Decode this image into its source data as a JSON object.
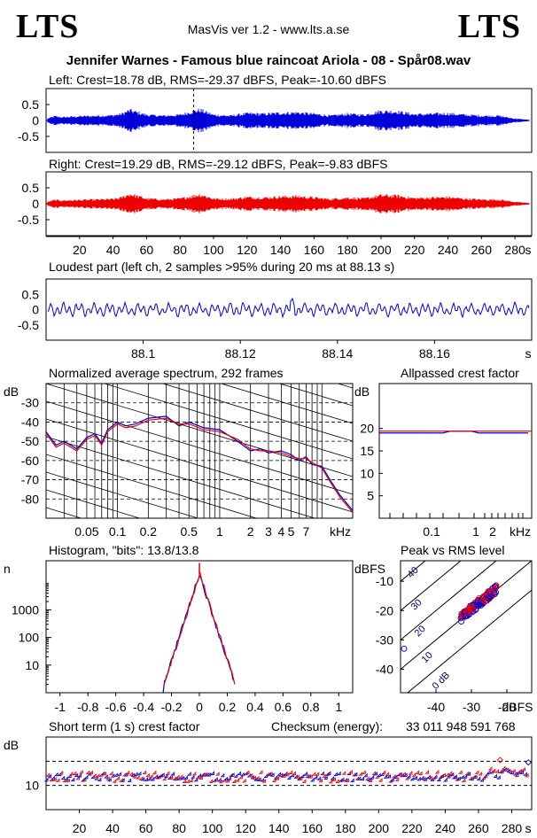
{
  "header": {
    "logo_left": "LTS",
    "logo_right": "LTS",
    "app": "MasVis ver 1.2 - www.lts.a.se",
    "file_title": "Jennifer Warnes - Famous blue raincoat Ariola - 08 - Spår08.wav"
  },
  "colors": {
    "left": "#0000dd",
    "right": "#ee0000",
    "grid": "#000000"
  },
  "chart_data": [
    {
      "id": "left_waveform",
      "type": "line",
      "title": "Left: Crest=18.78 dB, RMS=-29.37 dBFS, Peak=-10.60 dBFS",
      "xlim": [
        0,
        290
      ],
      "ylim": [
        -1,
        1
      ],
      "yticks": [
        "0.5",
        "0",
        "-0.5"
      ],
      "marker_x": 88.13,
      "envelope_x": [
        0,
        5,
        10,
        20,
        30,
        40,
        45,
        50,
        55,
        60,
        70,
        80,
        88,
        92,
        100,
        110,
        120,
        130,
        140,
        150,
        160,
        170,
        180,
        190,
        200,
        210,
        220,
        230,
        240,
        250,
        260,
        270,
        280,
        290
      ],
      "envelope": [
        0.03,
        0.09,
        0.07,
        0.09,
        0.1,
        0.11,
        0.14,
        0.22,
        0.17,
        0.12,
        0.1,
        0.12,
        0.2,
        0.23,
        0.12,
        0.1,
        0.15,
        0.14,
        0.16,
        0.17,
        0.14,
        0.1,
        0.14,
        0.12,
        0.2,
        0.19,
        0.13,
        0.14,
        0.15,
        0.12,
        0.1,
        0.1,
        0.04,
        0.01
      ]
    },
    {
      "id": "right_waveform",
      "type": "line",
      "title": "Right: Crest=19.29 dB, RMS=-29.12 dBFS, Peak=-9.83 dBFS",
      "xlim": [
        0,
        290
      ],
      "ylim": [
        -1,
        1
      ],
      "yticks": [
        "0.5",
        "0",
        "-0.5"
      ],
      "xticks": [
        "20",
        "40",
        "60",
        "80",
        "100",
        "120",
        "140",
        "160",
        "180",
        "200",
        "220",
        "240",
        "260",
        "280"
      ],
      "xunit": "s",
      "envelope_x": [
        0,
        5,
        10,
        20,
        30,
        40,
        45,
        50,
        55,
        60,
        70,
        80,
        88,
        92,
        100,
        110,
        120,
        130,
        140,
        150,
        160,
        170,
        180,
        190,
        200,
        210,
        220,
        230,
        240,
        250,
        260,
        270,
        280,
        290
      ],
      "envelope": [
        0.03,
        0.08,
        0.07,
        0.08,
        0.09,
        0.1,
        0.13,
        0.21,
        0.16,
        0.11,
        0.09,
        0.11,
        0.17,
        0.2,
        0.11,
        0.1,
        0.14,
        0.13,
        0.15,
        0.16,
        0.13,
        0.1,
        0.13,
        0.11,
        0.18,
        0.17,
        0.12,
        0.13,
        0.14,
        0.11,
        0.09,
        0.09,
        0.04,
        0.01
      ]
    },
    {
      "id": "loudest_part",
      "type": "line",
      "title": "Loudest part (left  ch, 2 samples >95% during 20 ms at 88.13 s)",
      "xlim": [
        88.08,
        88.18
      ],
      "ylim": [
        -1,
        1
      ],
      "yticks": [
        "0.5",
        "0",
        "-0.5"
      ],
      "xticks": [
        "88.1",
        "88.12",
        "88.14",
        "88.16"
      ],
      "xunit": "s"
    },
    {
      "id": "spectrum",
      "type": "line",
      "title": "Normalized average spectrum, 292 frames",
      "ylabel": "dB",
      "xunit": "kHz",
      "xlim": [
        0.02,
        20
      ],
      "ylim": [
        -90,
        -20
      ],
      "yticks": [
        "-30",
        "-40",
        "-50",
        "-60",
        "-70",
        "-80"
      ],
      "xticks": [
        "0.05",
        "0.1",
        "0.2",
        "0.5",
        "1",
        "2",
        "3",
        "4",
        "5",
        "7"
      ],
      "freq_khz": [
        0.02,
        0.025,
        0.03,
        0.04,
        0.05,
        0.06,
        0.07,
        0.08,
        0.1,
        0.12,
        0.15,
        0.2,
        0.3,
        0.4,
        0.5,
        0.7,
        1,
        1.5,
        2,
        2.5,
        3,
        4,
        5,
        6,
        7,
        8,
        10,
        12,
        15,
        20
      ],
      "left_db": [
        -45,
        -52,
        -50,
        -54,
        -48,
        -46,
        -51,
        -44,
        -40,
        -42,
        -41,
        -38,
        -37,
        -42,
        -40,
        -43,
        -44,
        -50,
        -55,
        -54,
        -56,
        -55,
        -57,
        -60,
        -58,
        -62,
        -63,
        -70,
        -78,
        -86
      ],
      "right_db": [
        -46,
        -53,
        -51,
        -55,
        -49,
        -47,
        -52,
        -45,
        -41,
        -43,
        -42,
        -39,
        -38,
        -41,
        -41,
        -44,
        -45,
        -49,
        -54,
        -55,
        -55,
        -56,
        -58,
        -59,
        -59,
        -61,
        -64,
        -71,
        -79,
        -87
      ]
    },
    {
      "id": "allpassed_crest",
      "type": "line",
      "title": "Allpassed crest factor",
      "ylabel": "dB",
      "xunit": "kHz",
      "ylim": [
        0,
        30
      ],
      "yticks": [
        "20",
        "15",
        "10",
        "5"
      ],
      "xticks": [
        "0.1",
        "1",
        "2"
      ],
      "left_level": 19,
      "right_level": 19.4
    },
    {
      "id": "histogram",
      "type": "line",
      "title": "Histogram, \"bits\": 13.8/13.8",
      "ylabel": "n",
      "yticks": [
        "1000",
        "100",
        "10"
      ],
      "xticks": [
        "-1",
        "-0.8",
        "-0.6",
        "-0.4",
        "-0.2",
        "0",
        "0.2",
        "0.4",
        "0.6",
        "0.8",
        "1"
      ],
      "xlim": [
        -1.1,
        1.1
      ],
      "peak_count": 20000
    },
    {
      "id": "peak_vs_rms",
      "type": "scatter",
      "title": "Peak vs RMS level",
      "ylabel": "dBFS",
      "xunit": "dBFS",
      "xlim": [
        -50,
        -13
      ],
      "ylim": [
        -48,
        -3
      ],
      "yticks": [
        "-10",
        "-20",
        "-30",
        "-40"
      ],
      "xticks": [
        "-40",
        "-30",
        "-20"
      ],
      "diag_labels": [
        "40",
        "30",
        "20",
        "10",
        "0 dB"
      ]
    },
    {
      "id": "short_term_crest",
      "type": "scatter",
      "title": "Short term (1 s) crest factor",
      "checksum_label": "Checksum (energy):",
      "checksum_value": "33 011 948 591 768",
      "ylabel": "dB",
      "yticks": [
        "10"
      ],
      "xticks": [
        "20",
        "40",
        "60",
        "80",
        "100",
        "120",
        "140",
        "160",
        "180",
        "200",
        "220",
        "240",
        "260",
        "280"
      ],
      "xunit": "s",
      "xlim": [
        0,
        292
      ],
      "ylim": [
        0,
        30
      ]
    }
  ]
}
